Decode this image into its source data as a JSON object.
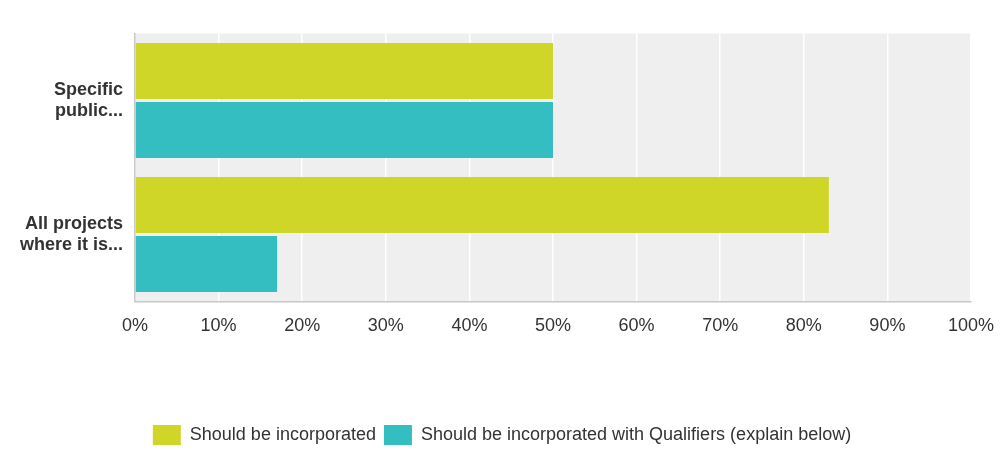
{
  "chart_data": {
    "type": "bar",
    "orientation": "horizontal",
    "categories": [
      "Specific public...",
      "All projects where it is..."
    ],
    "series": [
      {
        "name": "Should be incorporated",
        "color": "#cfd628",
        "values": [
          50,
          83
        ]
      },
      {
        "name": "Should be incorporated with Qualifiers (explain below)",
        "color": "#35bec1",
        "values": [
          50,
          17
        ]
      }
    ],
    "xlim": [
      0,
      100
    ],
    "xticks": [
      {
        "value": 0,
        "label": "0%"
      },
      {
        "value": 10,
        "label": "10%"
      },
      {
        "value": 20,
        "label": "20%"
      },
      {
        "value": 30,
        "label": "30%"
      },
      {
        "value": 40,
        "label": "40%"
      },
      {
        "value": 50,
        "label": "50%"
      },
      {
        "value": 60,
        "label": "60%"
      },
      {
        "value": 70,
        "label": "70%"
      },
      {
        "value": 80,
        "label": "80%"
      },
      {
        "value": 90,
        "label": "90%"
      },
      {
        "value": 100,
        "label": "100%"
      }
    ],
    "grid": "x",
    "legend": "bottom"
  }
}
